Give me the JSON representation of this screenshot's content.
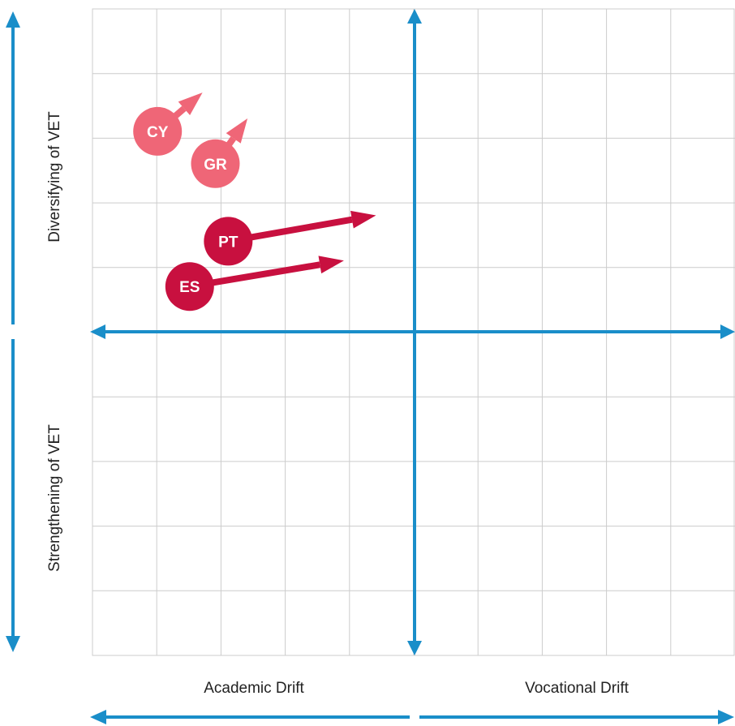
{
  "chart_data": {
    "type": "scatter",
    "title": "",
    "grid": true,
    "xlim": [
      -5,
      5
    ],
    "ylim": [
      -5,
      5
    ],
    "axis_labels": {
      "top": "Diversifying of VET",
      "bottom": "Strengthening of VET",
      "left": "Academic Drift",
      "right": "Vocational Drift"
    },
    "points": [
      {
        "label": "CY",
        "x": -4.0,
        "y": 3.1,
        "to_x": -3.3,
        "to_y": 3.7,
        "color": "#ef6677"
      },
      {
        "label": "GR",
        "x": -3.1,
        "y": 2.6,
        "to_x": -2.6,
        "to_y": 3.3,
        "color": "#ef6677"
      },
      {
        "label": "PT",
        "x": -2.9,
        "y": 1.4,
        "to_x": -0.6,
        "to_y": 1.8,
        "color": "#c8103f"
      },
      {
        "label": "ES",
        "x": -3.5,
        "y": 0.7,
        "to_x": -1.1,
        "to_y": 1.1,
        "color": "#c8103f"
      }
    ],
    "colors": {
      "axis": "#1a8ec9",
      "grid": "#cccccc"
    }
  }
}
